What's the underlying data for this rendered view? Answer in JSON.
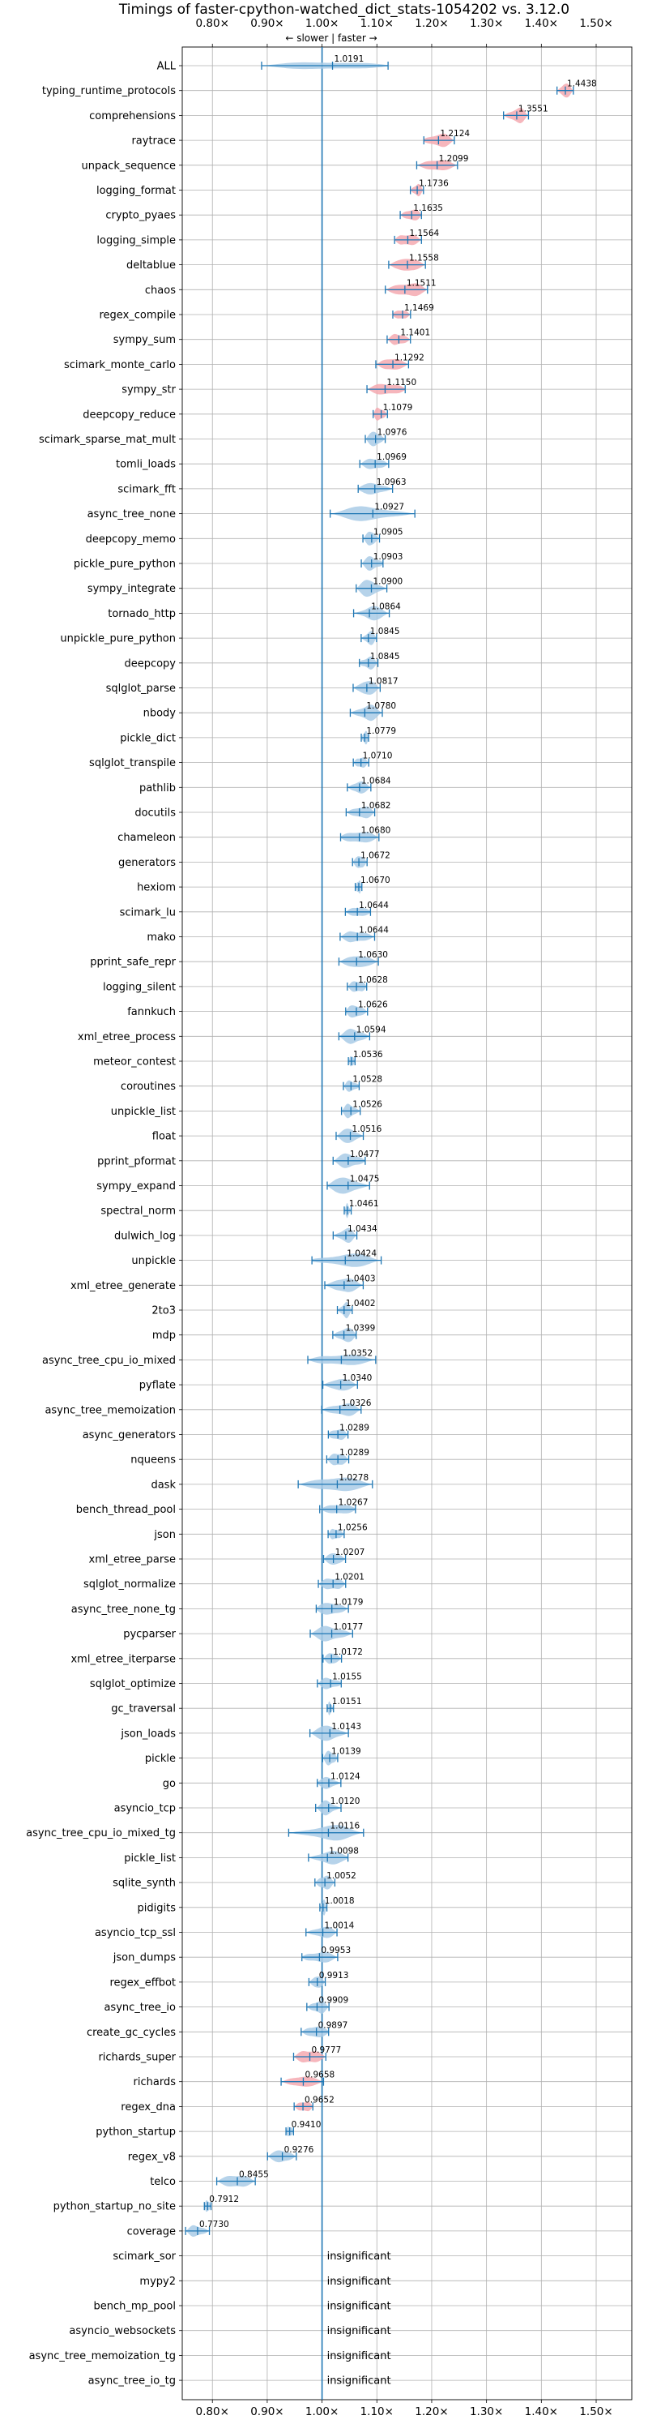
{
  "chart_data": {
    "type": "violin",
    "title": "Timings of faster-cpython-watched_dict_stats-1054202 vs. 3.12.0",
    "direction_label": "← slower | faster →",
    "x_tick_labels": [
      "0.80×",
      "0.90×",
      "1.00×",
      "1.10×",
      "1.20×",
      "1.30×",
      "1.40×",
      "1.50×"
    ],
    "x_ticks": [
      0.8,
      0.9,
      1.0,
      1.1,
      1.2,
      1.3,
      1.4,
      1.5
    ],
    "xlim": [
      0.745,
      1.565
    ],
    "reference_line": 1.0,
    "grid": true,
    "insignificant_text": "insignificant",
    "colors": {
      "blue_fill": "#a9cbe6",
      "red_fill": "#f4a9b0",
      "line": "#1f77b4"
    },
    "benchmarks": [
      {
        "name": "ALL",
        "value": 1.0191,
        "label": "1.0191"
      },
      {
        "name": "typing_runtime_protocols",
        "value": 1.4438,
        "label": "1.4438"
      },
      {
        "name": "comprehensions",
        "value": 1.3551,
        "label": "1.3551"
      },
      {
        "name": "raytrace",
        "value": 1.2124,
        "label": "1.2124"
      },
      {
        "name": "unpack_sequence",
        "value": 1.2099,
        "label": "1.2099"
      },
      {
        "name": "logging_format",
        "value": 1.1736,
        "label": "1.1736"
      },
      {
        "name": "crypto_pyaes",
        "value": 1.1635,
        "label": "1.1635"
      },
      {
        "name": "logging_simple",
        "value": 1.1564,
        "label": "1.1564"
      },
      {
        "name": "deltablue",
        "value": 1.1558,
        "label": "1.1558"
      },
      {
        "name": "chaos",
        "value": 1.1511,
        "label": "1.1511"
      },
      {
        "name": "regex_compile",
        "value": 1.1469,
        "label": "1.1469"
      },
      {
        "name": "sympy_sum",
        "value": 1.1401,
        "label": "1.1401"
      },
      {
        "name": "scimark_monte_carlo",
        "value": 1.1292,
        "label": "1.1292"
      },
      {
        "name": "sympy_str",
        "value": 1.115,
        "label": "1.1150"
      },
      {
        "name": "deepcopy_reduce",
        "value": 1.1079,
        "label": "1.1079"
      },
      {
        "name": "scimark_sparse_mat_mult",
        "value": 1.0976,
        "label": "1.0976"
      },
      {
        "name": "tomli_loads",
        "value": 1.0969,
        "label": "1.0969"
      },
      {
        "name": "scimark_fft",
        "value": 1.0963,
        "label": "1.0963"
      },
      {
        "name": "async_tree_none",
        "value": 1.0927,
        "label": "1.0927"
      },
      {
        "name": "deepcopy_memo",
        "value": 1.0905,
        "label": "1.0905"
      },
      {
        "name": "pickle_pure_python",
        "value": 1.0903,
        "label": "1.0903"
      },
      {
        "name": "sympy_integrate",
        "value": 1.09,
        "label": "1.0900"
      },
      {
        "name": "tornado_http",
        "value": 1.0864,
        "label": "1.0864"
      },
      {
        "name": "unpickle_pure_python",
        "value": 1.0845,
        "label": "1.0845"
      },
      {
        "name": "deepcopy",
        "value": 1.0845,
        "label": "1.0845"
      },
      {
        "name": "sqlglot_parse",
        "value": 1.0817,
        "label": "1.0817"
      },
      {
        "name": "nbody",
        "value": 1.078,
        "label": "1.0780"
      },
      {
        "name": "pickle_dict",
        "value": 1.0779,
        "label": "1.0779"
      },
      {
        "name": "sqlglot_transpile",
        "value": 1.071,
        "label": "1.0710"
      },
      {
        "name": "pathlib",
        "value": 1.0684,
        "label": "1.0684"
      },
      {
        "name": "docutils",
        "value": 1.0682,
        "label": "1.0682"
      },
      {
        "name": "chameleon",
        "value": 1.068,
        "label": "1.0680"
      },
      {
        "name": "generators",
        "value": 1.0672,
        "label": "1.0672"
      },
      {
        "name": "hexiom",
        "value": 1.067,
        "label": "1.0670"
      },
      {
        "name": "scimark_lu",
        "value": 1.0644,
        "label": "1.0644"
      },
      {
        "name": "mako",
        "value": 1.0644,
        "label": "1.0644"
      },
      {
        "name": "pprint_safe_repr",
        "value": 1.063,
        "label": "1.0630"
      },
      {
        "name": "logging_silent",
        "value": 1.0628,
        "label": "1.0628"
      },
      {
        "name": "fannkuch",
        "value": 1.0626,
        "label": "1.0626"
      },
      {
        "name": "xml_etree_process",
        "value": 1.0594,
        "label": "1.0594"
      },
      {
        "name": "meteor_contest",
        "value": 1.0536,
        "label": "1.0536"
      },
      {
        "name": "coroutines",
        "value": 1.0528,
        "label": "1.0528"
      },
      {
        "name": "unpickle_list",
        "value": 1.0526,
        "label": "1.0526"
      },
      {
        "name": "float",
        "value": 1.0516,
        "label": "1.0516"
      },
      {
        "name": "pprint_pformat",
        "value": 1.0477,
        "label": "1.0477"
      },
      {
        "name": "sympy_expand",
        "value": 1.0475,
        "label": "1.0475"
      },
      {
        "name": "spectral_norm",
        "value": 1.0461,
        "label": "1.0461"
      },
      {
        "name": "dulwich_log",
        "value": 1.0434,
        "label": "1.0434"
      },
      {
        "name": "unpickle",
        "value": 1.0424,
        "label": "1.0424"
      },
      {
        "name": "xml_etree_generate",
        "value": 1.0403,
        "label": "1.0403"
      },
      {
        "name": "2to3",
        "value": 1.0402,
        "label": "1.0402"
      },
      {
        "name": "mdp",
        "value": 1.0399,
        "label": "1.0399"
      },
      {
        "name": "async_tree_cpu_io_mixed",
        "value": 1.0352,
        "label": "1.0352"
      },
      {
        "name": "pyflate",
        "value": 1.034,
        "label": "1.0340"
      },
      {
        "name": "async_tree_memoization",
        "value": 1.0326,
        "label": "1.0326"
      },
      {
        "name": "async_generators",
        "value": 1.0289,
        "label": "1.0289"
      },
      {
        "name": "nqueens",
        "value": 1.0289,
        "label": "1.0289"
      },
      {
        "name": "dask",
        "value": 1.0278,
        "label": "1.0278"
      },
      {
        "name": "bench_thread_pool",
        "value": 1.0267,
        "label": "1.0267"
      },
      {
        "name": "json",
        "value": 1.0256,
        "label": "1.0256"
      },
      {
        "name": "xml_etree_parse",
        "value": 1.0207,
        "label": "1.0207"
      },
      {
        "name": "sqlglot_normalize",
        "value": 1.0201,
        "label": "1.0201"
      },
      {
        "name": "async_tree_none_tg",
        "value": 1.0179,
        "label": "1.0179"
      },
      {
        "name": "pycparser",
        "value": 1.0177,
        "label": "1.0177"
      },
      {
        "name": "xml_etree_iterparse",
        "value": 1.0172,
        "label": "1.0172"
      },
      {
        "name": "sqlglot_optimize",
        "value": 1.0155,
        "label": "1.0155"
      },
      {
        "name": "gc_traversal",
        "value": 1.0151,
        "label": "1.0151"
      },
      {
        "name": "json_loads",
        "value": 1.0143,
        "label": "1.0143"
      },
      {
        "name": "pickle",
        "value": 1.0139,
        "label": "1.0139"
      },
      {
        "name": "go",
        "value": 1.0124,
        "label": "1.0124"
      },
      {
        "name": "asyncio_tcp",
        "value": 1.012,
        "label": "1.0120"
      },
      {
        "name": "async_tree_cpu_io_mixed_tg",
        "value": 1.0116,
        "label": "1.0116"
      },
      {
        "name": "pickle_list",
        "value": 1.0098,
        "label": "1.0098"
      },
      {
        "name": "sqlite_synth",
        "value": 1.0052,
        "label": "1.0052"
      },
      {
        "name": "pidigits",
        "value": 1.0018,
        "label": "1.0018"
      },
      {
        "name": "asyncio_tcp_ssl",
        "value": 1.0014,
        "label": "1.0014"
      },
      {
        "name": "json_dumps",
        "value": 0.9953,
        "label": "0.9953"
      },
      {
        "name": "regex_effbot",
        "value": 0.9913,
        "label": "0.9913"
      },
      {
        "name": "async_tree_io",
        "value": 0.9909,
        "label": "0.9909"
      },
      {
        "name": "create_gc_cycles",
        "value": 0.9897,
        "label": "0.9897"
      },
      {
        "name": "richards_super",
        "value": 0.9777,
        "label": "0.9777"
      },
      {
        "name": "richards",
        "value": 0.9658,
        "label": "0.9658"
      },
      {
        "name": "regex_dna",
        "value": 0.9652,
        "label": "0.9652"
      },
      {
        "name": "python_startup",
        "value": 0.941,
        "label": "0.9410"
      },
      {
        "name": "regex_v8",
        "value": 0.9276,
        "label": "0.9276"
      },
      {
        "name": "telco",
        "value": 0.8455,
        "label": "0.8455"
      },
      {
        "name": "python_startup_no_site",
        "value": 0.7912,
        "label": "0.7912"
      },
      {
        "name": "coverage",
        "value": 0.773,
        "label": "0.7730"
      },
      {
        "name": "scimark_sor",
        "value": null,
        "label": ""
      },
      {
        "name": "mypy2",
        "value": null,
        "label": ""
      },
      {
        "name": "bench_mp_pool",
        "value": null,
        "label": ""
      },
      {
        "name": "asyncio_websockets",
        "value": null,
        "label": ""
      },
      {
        "name": "async_tree_memoization_tg",
        "value": null,
        "label": ""
      },
      {
        "name": "async_tree_io_tg",
        "value": null,
        "label": ""
      }
    ]
  }
}
